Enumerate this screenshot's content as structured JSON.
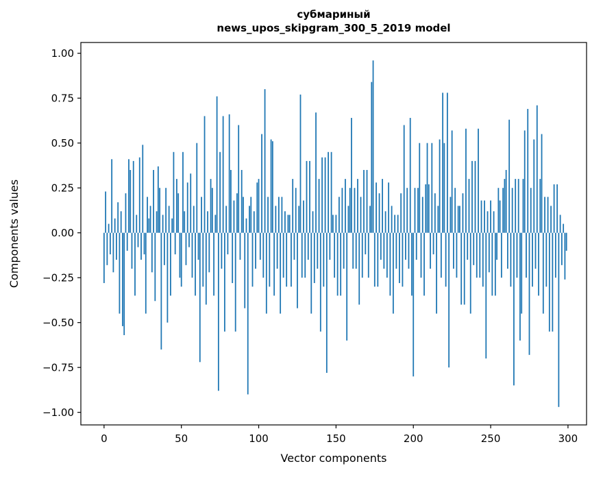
{
  "figure": {
    "title": "субмариный",
    "subtitle": "news_upos_skipgram_300_5_2019 model",
    "xlabel": "Vector components",
    "ylabel": "Components values"
  },
  "chart_data": {
    "type": "bar",
    "title": "субмариный",
    "subtitle": "news_upos_skipgram_300_5_2019 model",
    "xlabel": "Vector components",
    "ylabel": "Components values",
    "x_range": [
      0,
      299
    ],
    "xlim": [
      -15,
      312
    ],
    "ylim": [
      -1.07,
      1.06
    ],
    "grid": false,
    "legend": "none",
    "bar_color": "#1f77b4",
    "xticks": [
      0,
      50,
      100,
      150,
      200,
      250,
      300
    ],
    "xtick_labels": [
      "0",
      "50",
      "100",
      "150",
      "200",
      "250",
      "300"
    ],
    "yticks": [
      -1.0,
      -0.75,
      -0.5,
      -0.25,
      0.0,
      0.25,
      0.5,
      0.75,
      1.0
    ],
    "ytick_labels": [
      "−1.00",
      "−0.75",
      "−0.50",
      "−0.25",
      "0.00",
      "0.25",
      "0.50",
      "0.75",
      "1.00"
    ],
    "values": [
      -0.28,
      0.23,
      -0.18,
      0.05,
      -0.12,
      0.41,
      -0.22,
      0.08,
      -0.15,
      0.17,
      -0.45,
      0.12,
      -0.52,
      -0.57,
      0.22,
      -0.1,
      0.41,
      0.35,
      -0.2,
      0.4,
      -0.35,
      0.1,
      -0.08,
      0.42,
      -0.15,
      0.49,
      -0.12,
      -0.45,
      0.2,
      0.08,
      0.15,
      -0.22,
      0.35,
      -0.38,
      0.12,
      0.37,
      0.25,
      -0.65,
      0.1,
      -0.18,
      0.25,
      -0.5,
      0.15,
      -0.35,
      0.08,
      0.45,
      -0.12,
      0.3,
      0.22,
      -0.25,
      -0.3,
      0.45,
      0.12,
      -0.18,
      0.28,
      -0.08,
      0.33,
      -0.25,
      0.15,
      -0.35,
      0.5,
      -0.15,
      -0.72,
      0.2,
      -0.3,
      0.65,
      -0.4,
      0.12,
      -0.22,
      0.3,
      0.25,
      -0.35,
      0.1,
      0.76,
      -0.88,
      0.45,
      -0.2,
      0.65,
      -0.55,
      0.15,
      -0.12,
      0.66,
      0.35,
      -0.28,
      0.18,
      -0.55,
      0.22,
      0.6,
      -0.15,
      0.35,
      0.2,
      -0.42,
      0.08,
      -0.9,
      0.15,
      0.2,
      -0.3,
      0.12,
      -0.2,
      0.28,
      0.3,
      -0.15,
      0.55,
      -0.25,
      0.8,
      -0.45,
      0.2,
      -0.3,
      0.52,
      0.51,
      -0.35,
      0.15,
      -0.2,
      0.2,
      -0.45,
      0.2,
      -0.25,
      0.12,
      -0.3,
      0.1,
      0.1,
      -0.3,
      0.3,
      -0.15,
      0.25,
      -0.42,
      0.15,
      0.77,
      -0.25,
      0.18,
      -0.25,
      0.4,
      -0.15,
      0.4,
      -0.45,
      0.12,
      -0.28,
      0.67,
      -0.2,
      0.3,
      -0.55,
      0.42,
      -0.3,
      0.42,
      -0.78,
      0.45,
      -0.15,
      0.45,
      0.1,
      -0.25,
      0.1,
      -0.35,
      0.2,
      -0.35,
      0.25,
      -0.2,
      0.3,
      -0.6,
      0.15,
      0.25,
      0.64,
      -0.2,
      0.25,
      -0.2,
      0.3,
      -0.4,
      0.2,
      -0.25,
      0.35,
      -0.12,
      0.35,
      -0.25,
      0.15,
      0.84,
      0.96,
      -0.3,
      0.28,
      -0.3,
      0.22,
      -0.15,
      0.3,
      -0.2,
      0.12,
      -0.25,
      0.28,
      -0.35,
      0.15,
      -0.45,
      0.1,
      -0.2,
      0.1,
      -0.28,
      0.22,
      -0.3,
      0.6,
      -0.15,
      0.25,
      -0.2,
      0.64,
      -0.35,
      -0.8,
      0.25,
      -0.15,
      0.25,
      0.5,
      -0.25,
      0.2,
      -0.35,
      0.27,
      0.5,
      0.27,
      -0.2,
      0.5,
      -0.12,
      0.22,
      -0.45,
      0.15,
      0.52,
      -0.25,
      0.78,
      0.5,
      -0.3,
      0.78,
      -0.75,
      0.2,
      0.57,
      -0.2,
      0.25,
      -0.25,
      0.15,
      0.15,
      -0.4,
      0.22,
      -0.4,
      0.58,
      -0.15,
      0.3,
      -0.45,
      0.4,
      -0.18,
      0.4,
      -0.25,
      0.58,
      -0.25,
      0.18,
      -0.3,
      0.18,
      -0.7,
      0.12,
      -0.22,
      0.18,
      -0.35,
      0.12,
      -0.35,
      -0.15,
      0.25,
      0.18,
      -0.25,
      0.25,
      0.3,
      0.35,
      -0.2,
      0.63,
      -0.3,
      0.25,
      -0.85,
      0.3,
      -0.25,
      0.3,
      -0.6,
      -0.45,
      0.3,
      0.57,
      -0.25,
      0.69,
      -0.68,
      0.25,
      -0.3,
      0.52,
      -0.2,
      0.71,
      -0.35,
      0.3,
      0.55,
      -0.45,
      0.2,
      -0.3,
      0.2,
      -0.55,
      0.15,
      -0.55,
      0.27,
      -0.25,
      0.27,
      -0.97,
      0.1,
      -0.18,
      0.05,
      -0.26,
      -0.1
    ]
  }
}
